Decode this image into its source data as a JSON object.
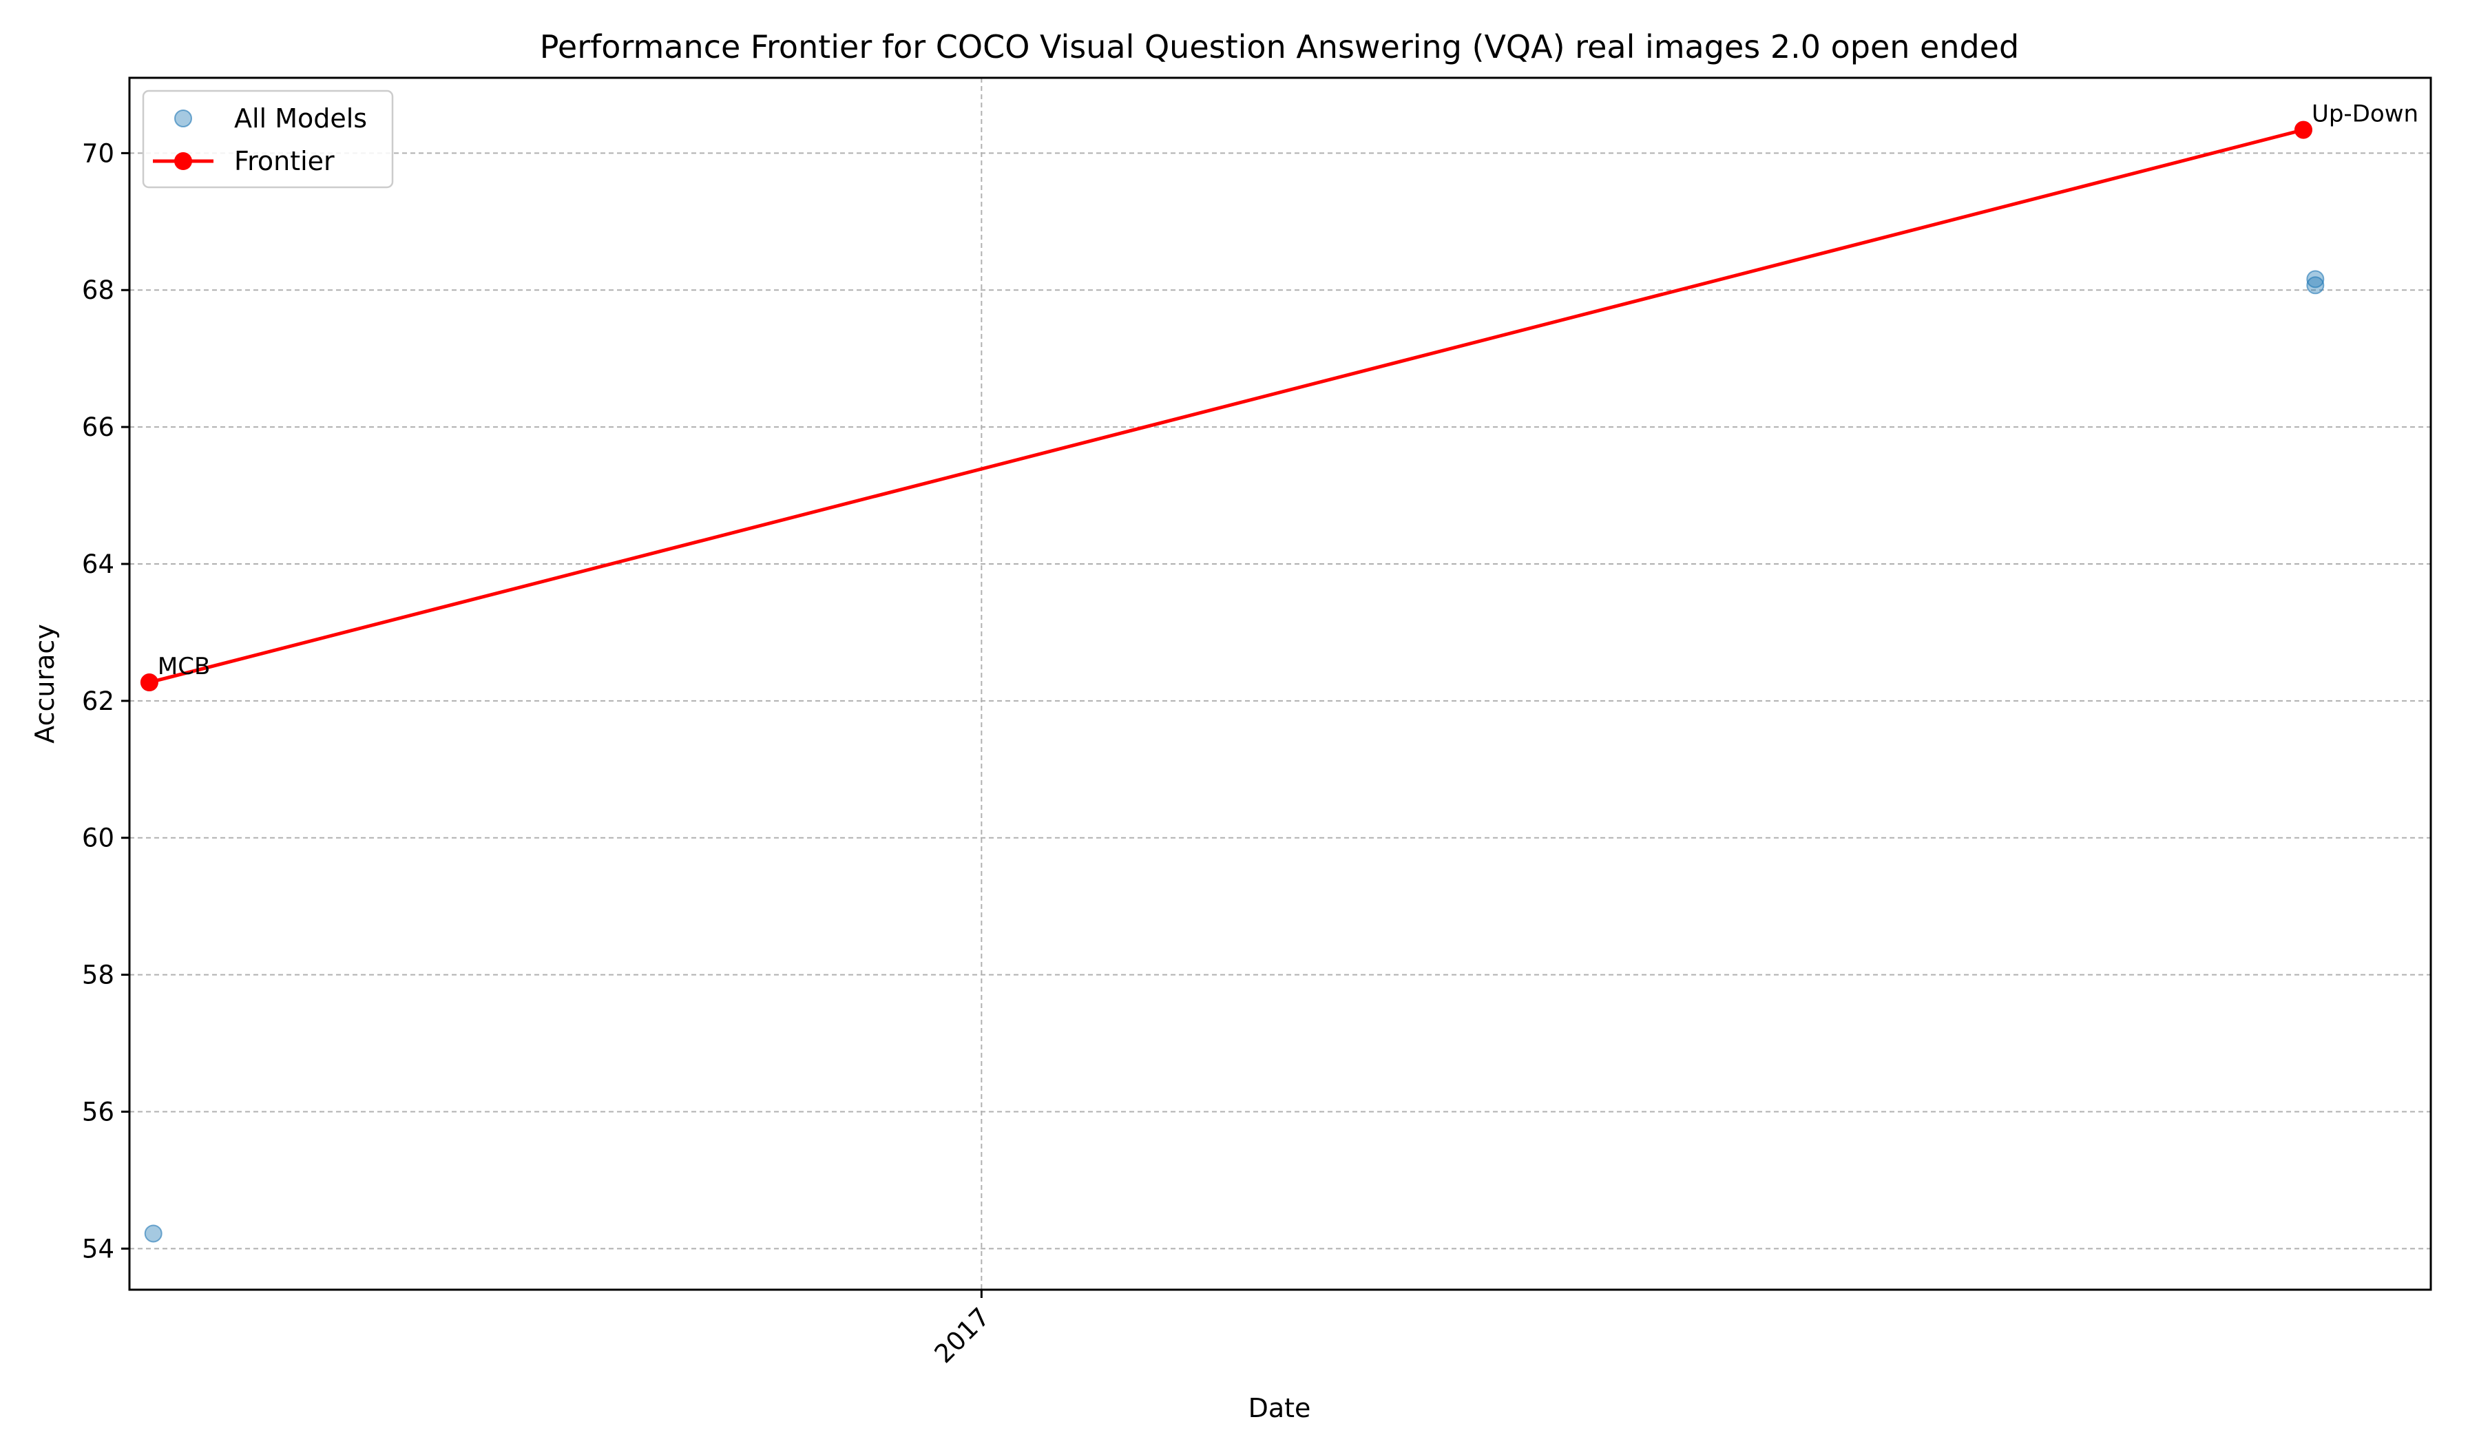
{
  "chart_data": {
    "type": "scatter",
    "title": "Performance Frontier for COCO Visual Question Answering (VQA) real images 2.0 open ended",
    "xlabel": "Date",
    "ylabel": "Accuracy",
    "x_scale": "date",
    "xlim": [
      "2016-06-01",
      "2017-12-31"
    ],
    "ylim": [
      53.4,
      71.1
    ],
    "x_ticks": [
      {
        "value": "2017-01-01",
        "label": "2017"
      }
    ],
    "y_ticks": [
      54,
      56,
      58,
      60,
      62,
      64,
      66,
      68,
      70
    ],
    "grid": true,
    "legend_position": "top-left",
    "series": [
      {
        "name": "All Models",
        "kind": "scatter",
        "color": "#1f77b4",
        "points": [
          {
            "x": "2016-06-07",
            "y": 54.22
          },
          {
            "x": "2016-06-06",
            "y": 62.27
          },
          {
            "x": "2017-12-02",
            "y": 68.16
          },
          {
            "x": "2017-12-02",
            "y": 68.07
          },
          {
            "x": "2017-11-29",
            "y": 70.34
          }
        ]
      },
      {
        "name": "Frontier",
        "kind": "line",
        "color": "#ff0000",
        "points": [
          {
            "x": "2016-06-06",
            "y": 62.27,
            "label": "MCB"
          },
          {
            "x": "2017-11-29",
            "y": 70.34,
            "label": "Up-Down"
          }
        ]
      }
    ]
  }
}
